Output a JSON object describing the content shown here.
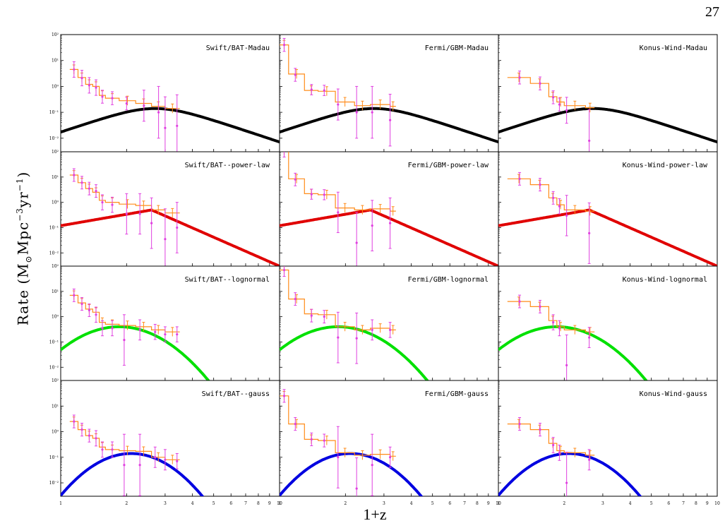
{
  "page_number": "27",
  "y_axis": {
    "label_main": "Rate  (M",
    "label_sub": "⊙",
    "label_mid": "Mpc",
    "label_sup1": "−3",
    "label_mid2": "yr",
    "label_sup2": "−1",
    "label_end": ")"
  },
  "x_axis": {
    "label": "1+z"
  },
  "chart_data": {
    "type": "line",
    "layout": "4 rows × 3 columns of panels sharing axes",
    "xscale": "log",
    "yscale": "log",
    "xlim": [
      1,
      10
    ],
    "ylim": [
      0.003,
      100
    ],
    "x_tick_labels": [
      "1",
      "2",
      "3",
      "4",
      "5",
      "6",
      "7",
      "8",
      "9",
      "10"
    ],
    "y_tick_labels": [
      "10⁻²",
      "10⁻¹",
      "10⁰",
      "10¹",
      "10²"
    ],
    "colors": {
      "histogram": "#ff8c1a",
      "points": "#e040e0",
      "Madau": "#000000",
      "power-law": "#e00000",
      "lognormal": "#00e000",
      "gauss": "#0000e0"
    },
    "panels": [
      {
        "title": "Swift/BAT-Madau",
        "row": 0,
        "col": 0,
        "model": "Madau",
        "hist": [
          [
            1.1,
            1.2,
            4.5
          ],
          [
            1.2,
            1.3,
            2.2
          ],
          [
            1.3,
            1.4,
            1.2
          ],
          [
            1.4,
            1.5,
            1.0
          ],
          [
            1.5,
            1.6,
            0.45
          ],
          [
            1.6,
            1.85,
            0.35
          ],
          [
            1.85,
            2.2,
            0.28
          ],
          [
            2.2,
            2.6,
            0.22
          ],
          [
            2.6,
            3.0,
            0.17
          ],
          [
            3.0,
            3.5,
            0.14
          ]
        ],
        "points": [
          [
            1.15,
            4.5,
            0.3
          ],
          [
            1.25,
            2.1,
            0.3
          ],
          [
            1.35,
            1.1,
            0.3
          ],
          [
            1.45,
            0.9,
            0.3
          ],
          [
            1.55,
            0.4,
            0.25
          ],
          [
            1.72,
            0.35,
            0.25
          ],
          [
            2.0,
            0.22,
            0.25
          ],
          [
            2.4,
            0.18,
            0.6
          ],
          [
            2.8,
            0.1,
            1.0
          ],
          [
            3.0,
            0.025,
            1.2
          ],
          [
            3.4,
            0.03,
            1.2
          ]
        ]
      },
      {
        "title": "Fermi/GBM-Madau",
        "row": 0,
        "col": 1,
        "model": "Madau",
        "hist": [
          [
            1.0,
            1.1,
            40
          ],
          [
            1.1,
            1.3,
            3.0
          ],
          [
            1.3,
            1.5,
            0.7
          ],
          [
            1.5,
            1.8,
            0.65
          ],
          [
            1.8,
            2.2,
            0.25
          ],
          [
            2.2,
            2.6,
            0.18
          ],
          [
            2.6,
            3.2,
            0.2
          ],
          [
            3.2,
            3.4,
            0.17
          ]
        ],
        "points": [
          [
            1.05,
            40,
            0.25
          ],
          [
            1.18,
            2.8,
            0.25
          ],
          [
            1.4,
            0.75,
            0.2
          ],
          [
            1.6,
            0.7,
            0.2
          ],
          [
            1.85,
            0.2,
            0.6
          ],
          [
            2.25,
            0.1,
            1.0
          ],
          [
            2.65,
            0.1,
            1.0
          ],
          [
            3.2,
            0.05,
            1.0
          ]
        ]
      },
      {
        "title": "Konus-Wind-Madau",
        "row": 0,
        "col": 2,
        "model": "Madau",
        "hist": [
          [
            1.1,
            1.4,
            2.2
          ],
          [
            1.4,
            1.7,
            1.3
          ],
          [
            1.7,
            1.85,
            0.4
          ],
          [
            1.85,
            2.0,
            0.25
          ],
          [
            2.0,
            2.5,
            0.18
          ],
          [
            2.5,
            2.75,
            0.15
          ]
        ],
        "points": [
          [
            1.25,
            2.2,
            0.25
          ],
          [
            1.55,
            1.3,
            0.25
          ],
          [
            1.78,
            0.38,
            0.25
          ],
          [
            1.9,
            0.2,
            0.25
          ],
          [
            2.05,
            0.12,
            0.5
          ],
          [
            2.6,
            0.008,
            1.2
          ]
        ]
      },
      {
        "title": "Swift/BAT--power-law",
        "row": 1,
        "col": 0,
        "model": "power-law",
        "hist": [
          [
            1.1,
            1.2,
            12
          ],
          [
            1.2,
            1.3,
            6.0
          ],
          [
            1.3,
            1.4,
            3.5
          ],
          [
            1.4,
            1.5,
            2.5
          ],
          [
            1.5,
            1.6,
            1.2
          ],
          [
            1.6,
            1.85,
            1.0
          ],
          [
            1.85,
            2.2,
            0.85
          ],
          [
            2.2,
            2.6,
            0.75
          ],
          [
            2.6,
            3.0,
            0.5
          ],
          [
            3.0,
            3.5,
            0.38
          ]
        ],
        "points": [
          [
            1.15,
            12,
            0.25
          ],
          [
            1.25,
            6,
            0.25
          ],
          [
            1.35,
            3.5,
            0.25
          ],
          [
            1.45,
            2.8,
            0.25
          ],
          [
            1.55,
            1.0,
            0.3
          ],
          [
            1.72,
            0.8,
            0.3
          ],
          [
            2.0,
            0.35,
            0.8
          ],
          [
            2.3,
            0.35,
            0.8
          ],
          [
            2.6,
            0.15,
            1.0
          ],
          [
            3.0,
            0.035,
            1.2
          ],
          [
            3.4,
            0.1,
            1.0
          ]
        ]
      },
      {
        "title": "Fermi/GBM-power-law",
        "row": 1,
        "col": 1,
        "model": "power-law",
        "hist": [
          [
            1.0,
            1.1,
            110
          ],
          [
            1.1,
            1.3,
            8.5
          ],
          [
            1.3,
            1.5,
            2.2
          ],
          [
            1.5,
            1.8,
            2.0
          ],
          [
            1.8,
            2.2,
            0.6
          ],
          [
            2.2,
            2.6,
            0.5
          ],
          [
            2.6,
            3.2,
            0.55
          ],
          [
            3.2,
            3.4,
            0.45
          ]
        ],
        "points": [
          [
            1.05,
            110,
            0.25
          ],
          [
            1.18,
            8,
            0.25
          ],
          [
            1.4,
            2.1,
            0.2
          ],
          [
            1.6,
            2.0,
            0.2
          ],
          [
            1.85,
            0.4,
            0.8
          ],
          [
            2.25,
            0.025,
            1.2
          ],
          [
            2.65,
            0.12,
            1.0
          ],
          [
            3.2,
            0.15,
            1.0
          ]
        ]
      },
      {
        "title": "Konus-Wind-power-law",
        "row": 1,
        "col": 2,
        "model": "power-law",
        "hist": [
          [
            1.1,
            1.4,
            8.5
          ],
          [
            1.4,
            1.7,
            5.0
          ],
          [
            1.7,
            1.85,
            1.5
          ],
          [
            1.85,
            2.0,
            0.8
          ],
          [
            2.0,
            2.5,
            0.5
          ],
          [
            2.5,
            2.75,
            0.45
          ]
        ],
        "points": [
          [
            1.25,
            8.5,
            0.25
          ],
          [
            1.55,
            5,
            0.25
          ],
          [
            1.78,
            1.5,
            0.25
          ],
          [
            1.9,
            0.7,
            0.3
          ],
          [
            2.05,
            0.3,
            0.8
          ],
          [
            2.6,
            0.06,
            1.2
          ]
        ]
      },
      {
        "title": "Swift/BAT--lognormal",
        "row": 2,
        "col": 0,
        "model": "lognormal",
        "hist": [
          [
            1.1,
            1.2,
            7.0
          ],
          [
            1.2,
            1.3,
            3.5
          ],
          [
            1.3,
            1.4,
            2.0
          ],
          [
            1.4,
            1.5,
            1.5
          ],
          [
            1.5,
            1.6,
            0.6
          ],
          [
            1.6,
            1.85,
            0.5
          ],
          [
            1.85,
            2.2,
            0.45
          ],
          [
            2.2,
            2.6,
            0.4
          ],
          [
            2.6,
            3.0,
            0.3
          ],
          [
            3.0,
            3.5,
            0.25
          ]
        ],
        "points": [
          [
            1.15,
            7,
            0.25
          ],
          [
            1.25,
            3.2,
            0.25
          ],
          [
            1.35,
            1.8,
            0.25
          ],
          [
            1.45,
            1.2,
            0.3
          ],
          [
            1.55,
            0.35,
            0.3
          ],
          [
            1.72,
            0.35,
            0.3
          ],
          [
            1.95,
            0.12,
            1.0
          ],
          [
            2.3,
            0.3,
            0.4
          ],
          [
            2.7,
            0.25,
            0.3
          ],
          [
            3.0,
            0.2,
            0.3
          ],
          [
            3.4,
            0.2,
            0.3
          ]
        ]
      },
      {
        "title": "Fermi/GBM-lognormal",
        "row": 2,
        "col": 1,
        "model": "lognormal",
        "hist": [
          [
            1.0,
            1.1,
            70
          ],
          [
            1.1,
            1.3,
            5.0
          ],
          [
            1.3,
            1.5,
            1.3
          ],
          [
            1.5,
            1.8,
            1.2
          ],
          [
            1.8,
            2.2,
            0.4
          ],
          [
            2.2,
            2.6,
            0.3
          ],
          [
            2.6,
            3.2,
            0.35
          ],
          [
            3.2,
            3.4,
            0.3
          ]
        ],
        "points": [
          [
            1.05,
            70,
            0.25
          ],
          [
            1.18,
            5,
            0.25
          ],
          [
            1.4,
            1.1,
            0.25
          ],
          [
            1.6,
            1.0,
            0.25
          ],
          [
            1.85,
            0.15,
            1.0
          ],
          [
            2.25,
            0.14,
            1.0
          ],
          [
            2.65,
            0.3,
            0.4
          ],
          [
            3.2,
            0.3,
            0.3
          ]
        ]
      },
      {
        "title": "Konus-Wind-lognormal",
        "row": 2,
        "col": 2,
        "model": "lognormal",
        "hist": [
          [
            1.1,
            1.4,
            4.0
          ],
          [
            1.4,
            1.7,
            2.5
          ],
          [
            1.7,
            1.85,
            0.7
          ],
          [
            1.85,
            2.0,
            0.4
          ],
          [
            2.0,
            2.5,
            0.3
          ],
          [
            2.5,
            2.75,
            0.25
          ]
        ],
        "points": [
          [
            1.25,
            4,
            0.25
          ],
          [
            1.55,
            2.5,
            0.25
          ],
          [
            1.78,
            0.6,
            0.3
          ],
          [
            1.9,
            0.35,
            0.3
          ],
          [
            2.05,
            0.012,
            1.2
          ],
          [
            2.6,
            0.15,
            0.4
          ]
        ]
      },
      {
        "title": "Swift/BAT--gauss",
        "row": 3,
        "col": 0,
        "model": "gauss",
        "hist": [
          [
            1.1,
            1.2,
            2.5
          ],
          [
            1.2,
            1.3,
            1.2
          ],
          [
            1.3,
            1.4,
            0.7
          ],
          [
            1.4,
            1.5,
            0.55
          ],
          [
            1.5,
            1.6,
            0.25
          ],
          [
            1.6,
            1.85,
            0.2
          ],
          [
            1.85,
            2.2,
            0.18
          ],
          [
            2.2,
            2.6,
            0.17
          ],
          [
            2.6,
            3.0,
            0.1
          ],
          [
            3.0,
            3.5,
            0.08
          ]
        ],
        "points": [
          [
            1.15,
            2.5,
            0.25
          ],
          [
            1.25,
            1.2,
            0.25
          ],
          [
            1.35,
            0.7,
            0.25
          ],
          [
            1.45,
            0.55,
            0.3
          ],
          [
            1.55,
            0.2,
            0.3
          ],
          [
            1.72,
            0.2,
            0.3
          ],
          [
            1.95,
            0.05,
            1.2
          ],
          [
            2.3,
            0.05,
            1.2
          ],
          [
            2.7,
            0.1,
            0.4
          ],
          [
            3.0,
            0.08,
            0.4
          ],
          [
            3.4,
            0.07,
            0.3
          ]
        ]
      },
      {
        "title": "Fermi/GBM-gauss",
        "row": 3,
        "col": 1,
        "model": "gauss",
        "hist": [
          [
            1.0,
            1.1,
            25
          ],
          [
            1.1,
            1.3,
            2.0
          ],
          [
            1.3,
            1.5,
            0.5
          ],
          [
            1.5,
            1.8,
            0.45
          ],
          [
            1.8,
            2.2,
            0.15
          ],
          [
            2.2,
            2.6,
            0.12
          ],
          [
            2.6,
            3.2,
            0.13
          ],
          [
            3.2,
            3.4,
            0.11
          ]
        ],
        "points": [
          [
            1.05,
            25,
            0.25
          ],
          [
            1.18,
            2,
            0.25
          ],
          [
            1.4,
            0.5,
            0.25
          ],
          [
            1.6,
            0.45,
            0.25
          ],
          [
            1.85,
            0.1,
            1.2
          ],
          [
            2.25,
            0.006,
            1.2
          ],
          [
            2.65,
            0.05,
            1.2
          ],
          [
            3.2,
            0.1,
            0.4
          ]
        ]
      },
      {
        "title": "Konus-Wind-gauss",
        "row": 3,
        "col": 2,
        "model": "gauss",
        "hist": [
          [
            1.1,
            1.4,
            2.0
          ],
          [
            1.4,
            1.7,
            1.2
          ],
          [
            1.7,
            1.85,
            0.35
          ],
          [
            1.85,
            2.0,
            0.18
          ],
          [
            2.0,
            2.5,
            0.15
          ],
          [
            2.5,
            2.75,
            0.12
          ]
        ],
        "points": [
          [
            1.25,
            2,
            0.25
          ],
          [
            1.55,
            1.2,
            0.25
          ],
          [
            1.78,
            0.3,
            0.3
          ],
          [
            1.9,
            0.15,
            0.3
          ],
          [
            2.05,
            0.01,
            1.2
          ],
          [
            2.6,
            0.08,
            0.4
          ]
        ]
      }
    ]
  }
}
